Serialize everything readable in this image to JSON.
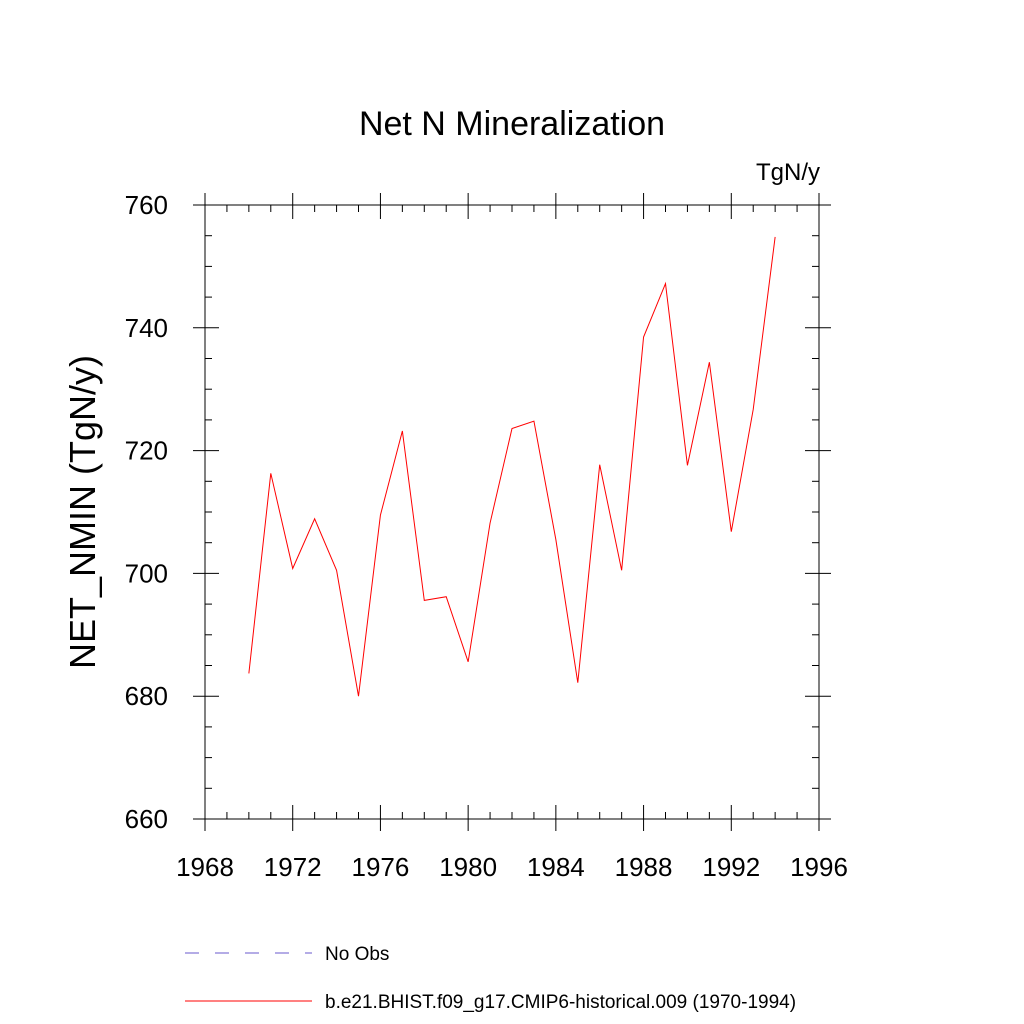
{
  "chart_data": {
    "type": "line",
    "title": "Net N Mineralization",
    "units_label": "TgN/y",
    "ylabel": "NET_NMIN  (TgN/y)",
    "xlabel": "",
    "xlim": [
      1968,
      1996
    ],
    "ylim": [
      660,
      760
    ],
    "xticks": [
      1968,
      1972,
      1976,
      1980,
      1984,
      1988,
      1992,
      1996
    ],
    "yticks": [
      660,
      680,
      700,
      720,
      740,
      760
    ],
    "x_minor_step": 1,
    "y_minor_step": 5,
    "grid": false,
    "legend_position": "bottom",
    "x": [
      1970,
      1971,
      1972,
      1973,
      1974,
      1975,
      1976,
      1977,
      1978,
      1979,
      1980,
      1981,
      1982,
      1983,
      1984,
      1985,
      1986,
      1987,
      1988,
      1989,
      1990,
      1991,
      1992,
      1993,
      1994
    ],
    "series": [
      {
        "name": "b.e21.BHIST.f09_g17.CMIP6-historical.009 (1970-1994)",
        "color": "#ff0000",
        "style": "solid",
        "values": [
          683.7,
          716.3,
          700.8,
          708.9,
          700.5,
          680.0,
          709.5,
          723.2,
          695.6,
          696.2,
          685.6,
          708.2,
          723.6,
          724.8,
          705.5,
          682.2,
          717.7,
          700.5,
          738.5,
          747.2,
          717.6,
          734.4,
          706.8,
          726.7,
          754.8
        ]
      }
    ],
    "legend": [
      {
        "label": "No Obs",
        "color": "#6a5acd",
        "style": "dashed"
      },
      {
        "label": "b.e21.BHIST.f09_g17.CMIP6-historical.009 (1970-1994)",
        "color": "#ff0000",
        "style": "solid"
      }
    ]
  }
}
